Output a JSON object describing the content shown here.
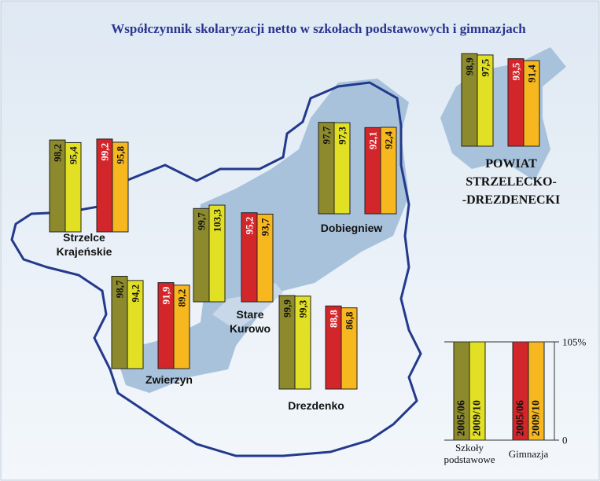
{
  "chart_data": {
    "type": "map-bars",
    "title": "Współczynnik skolaryzacji netto w szkołach podstawowych i gimnazjach",
    "groups": [
      {
        "name": [
          "Szkoły",
          "podstawowe"
        ],
        "series": [
          {
            "name": "2005/06",
            "color": "#8c8a2c"
          },
          {
            "name": "2009/10",
            "color": "#e2e024"
          }
        ]
      },
      {
        "name": [
          "Gimnazja"
        ],
        "series": [
          {
            "name": "2005/06",
            "color": "#d3262b"
          },
          {
            "name": "2009/10",
            "color": "#f7b81f"
          }
        ]
      }
    ],
    "ylim": [
      0,
      105
    ],
    "yticks": [
      0,
      {
        "value": 105,
        "label": "105%"
      }
    ],
    "regions": [
      {
        "name": [
          "Strzelce",
          "Krajeńskie"
        ],
        "values": [
          98.2,
          95.4,
          99.2,
          95.8
        ],
        "value_labels": [
          "98,2",
          "95,4",
          "99,2",
          "95,8"
        ]
      },
      {
        "name": [
          "Dobiegniew"
        ],
        "values": [
          97.7,
          97.3,
          92.1,
          92.4
        ],
        "value_labels": [
          "97,7",
          "97,3",
          "92,1",
          "92,4"
        ]
      },
      {
        "name": [
          "Stare",
          "Kurowo"
        ],
        "values": [
          99.7,
          103.3,
          95.2,
          93.7
        ],
        "value_labels": [
          "99,7",
          "103,3",
          "95,2",
          "93,7"
        ]
      },
      {
        "name": [
          "Zwierzyn"
        ],
        "values": [
          98.7,
          94.2,
          91.9,
          89.2
        ],
        "value_labels": [
          "98,7",
          "94,2",
          "91,9",
          "89,2"
        ]
      },
      {
        "name": [
          "Drezdenko"
        ],
        "values": [
          99.9,
          99.3,
          88.8,
          86.8
        ],
        "value_labels": [
          "99,9",
          "99,3",
          "88,8",
          "86,8"
        ]
      },
      {
        "name": [
          "POWIAT",
          "STRZELECKO-",
          "-DREZDENECKI"
        ],
        "values": [
          98.9,
          97.5,
          93.5,
          91.4
        ],
        "value_labels": [
          "98,9",
          "97,5",
          "93,5",
          "91,4"
        ]
      }
    ]
  }
}
